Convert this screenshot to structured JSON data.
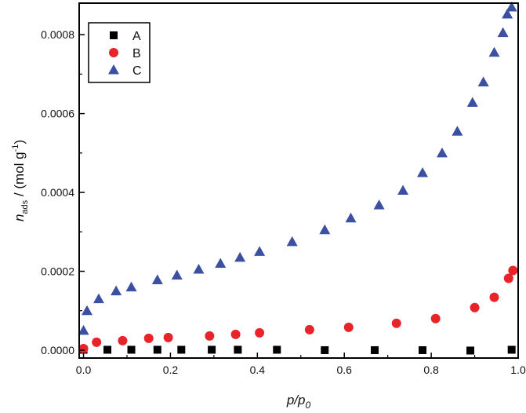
{
  "chart_data": {
    "type": "scatter",
    "xlabel": {
      "main": "p/p",
      "sub": "0"
    },
    "ylabel": {
      "main": "n",
      "sub": "ads",
      "mid": " / (mol g",
      "sup": "-1",
      "end": ")"
    },
    "xlim": [
      -0.01,
      1.0
    ],
    "ylim": [
      -2e-05,
      0.00088
    ],
    "xticks": [
      0.0,
      0.2,
      0.4,
      0.6,
      0.8,
      1.0
    ],
    "xtick_labels": [
      "0.0",
      "0.2",
      "0.4",
      "0.6",
      "0.8",
      "1.0"
    ],
    "yticks": [
      0.0,
      0.0002,
      0.0004,
      0.0006,
      0.0008
    ],
    "ytick_labels": [
      "0.0000",
      "0.0002",
      "0.0004",
      "0.0006",
      "0.0008"
    ],
    "grid": false,
    "legend_position": "top-left",
    "series": [
      {
        "name": "A",
        "marker": "square",
        "color": "#000000",
        "x": [
          0.0,
          0.055,
          0.11,
          0.17,
          0.225,
          0.295,
          0.355,
          0.445,
          0.555,
          0.67,
          0.78,
          0.89,
          0.985
        ],
        "y": [
          1e-06,
          1e-06,
          1e-06,
          1e-06,
          1e-06,
          1e-06,
          1e-06,
          1e-06,
          0.0,
          0.0,
          0.0,
          -1e-06,
          1e-06
        ]
      },
      {
        "name": "B",
        "marker": "circle",
        "color": "#e8232a",
        "x": [
          0.0,
          0.03,
          0.09,
          0.15,
          0.195,
          0.29,
          0.35,
          0.405,
          0.52,
          0.61,
          0.72,
          0.81,
          0.9,
          0.945,
          0.978,
          0.988
        ],
        "y": [
          4e-06,
          2e-05,
          2.4e-05,
          3e-05,
          3.2e-05,
          3.6e-05,
          4e-05,
          4.4e-05,
          5.2e-05,
          5.8e-05,
          6.8e-05,
          8e-05,
          0.000108,
          0.000134,
          0.000182,
          0.000202
        ]
      },
      {
        "name": "C",
        "marker": "triangle",
        "color": "#3b50a0",
        "x": [
          0.0,
          0.008,
          0.035,
          0.075,
          0.11,
          0.17,
          0.215,
          0.265,
          0.315,
          0.36,
          0.405,
          0.48,
          0.555,
          0.615,
          0.68,
          0.735,
          0.78,
          0.825,
          0.86,
          0.895,
          0.92,
          0.945,
          0.965,
          0.975,
          0.985
        ],
        "y": [
          5e-05,
          0.0001,
          0.00013,
          0.00015,
          0.00016,
          0.000178,
          0.00019,
          0.000205,
          0.00022,
          0.000235,
          0.00025,
          0.000275,
          0.000305,
          0.000335,
          0.000368,
          0.000405,
          0.00045,
          0.0005,
          0.000555,
          0.000628,
          0.00068,
          0.000755,
          0.000805,
          0.000852,
          0.00087
        ]
      }
    ]
  }
}
